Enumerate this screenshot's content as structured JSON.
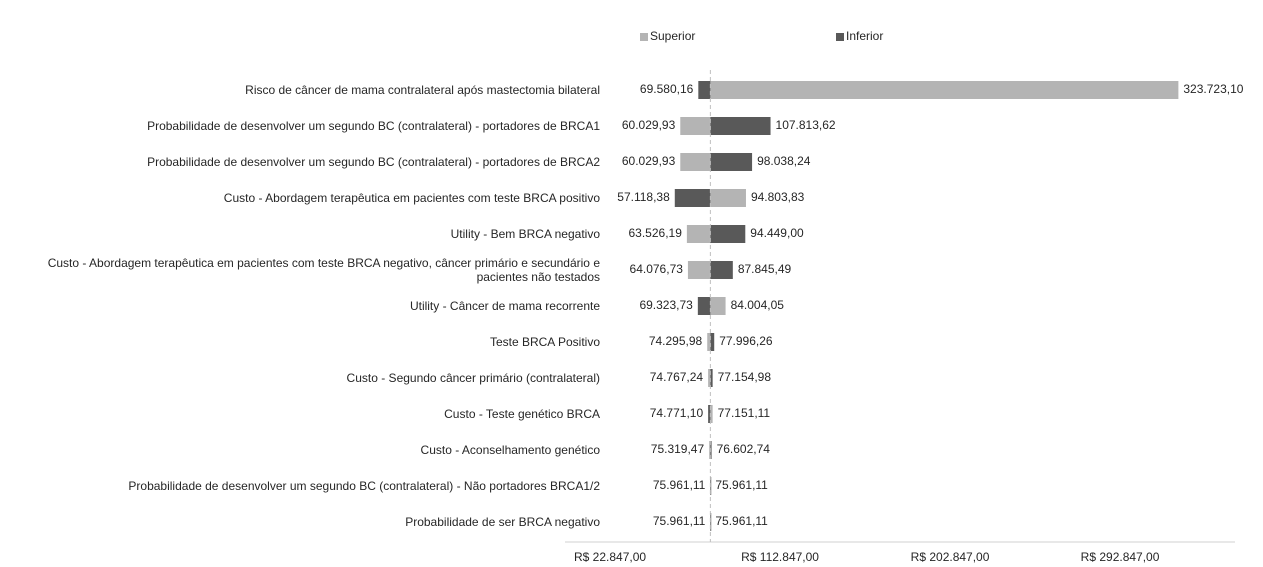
{
  "chart_data": {
    "type": "tornado",
    "categories": [
      "Risco de câncer de mama contralateral após mastectomia bilateral",
      "Probabilidade de desenvolver um segundo BC (contralateral) - portadores de BRCA1",
      "Probabilidade de desenvolver um segundo BC (contralateral) - portadores de BRCA2",
      "Custo - Abordagem terapêutica em pacientes com teste BRCA positivo",
      "Utility - Bem BRCA negativo",
      "Custo - Abordagem terapêutica em pacientes com teste BRCA negativo, câncer primário e secundário e pacientes não testados",
      "Utility - Câncer de mama recorrente",
      "Teste BRCA Positivo",
      "Custo - Segundo câncer primário (contralateral)",
      "Custo - Teste genético BRCA",
      "Custo - Aconselhamento genético",
      "Probabilidade de desenvolver um segundo BC (contralateral) - Não portadores BRCA1/2",
      "Probabilidade de ser BRCA negativo"
    ],
    "baseline": 75961.11,
    "series": [
      {
        "name": "Superior",
        "color": "#b4b4b4",
        "values": [
          323723.1,
          60029.93,
          60029.93,
          94803.83,
          63526.19,
          64076.73,
          84004.05,
          74295.98,
          74767.24,
          77151.11,
          75319.47,
          75961.11,
          75961.11
        ],
        "value_labels": [
          "323.723,10",
          "60.029,93",
          "60.029,93",
          "94.803,83",
          "63.526,19",
          "64.076,73",
          "84.004,05",
          "74.295,98",
          "74.767,24",
          "77.151,11",
          "75.319,47",
          "75.961,11",
          "75.961,11"
        ]
      },
      {
        "name": "Inferior",
        "color": "#595959",
        "values": [
          69580.16,
          107813.62,
          98038.24,
          57118.38,
          94449.0,
          87845.49,
          69323.73,
          77996.26,
          77154.98,
          74771.1,
          76602.74,
          75961.11,
          75961.11
        ],
        "value_labels": [
          "69.580,16",
          "107.813,62",
          "98.038,24",
          "57.118,38",
          "94.449,00",
          "87.845,49",
          "69.323,73",
          "77.996,26",
          "77.154,98",
          "74.771,10",
          "76.602,74",
          "75.961,11",
          "75.961,11"
        ]
      }
    ],
    "xlim": [
      -1000,
      353700
    ],
    "xticks": [
      {
        "value": 22847,
        "label": "R$ 22.847,00"
      },
      {
        "value": 112847,
        "label": "R$ 112.847,00"
      },
      {
        "value": 202847,
        "label": "R$ 202.847,00"
      },
      {
        "value": 292847,
        "label": "R$ 292.847,00"
      }
    ],
    "legend": "top"
  }
}
